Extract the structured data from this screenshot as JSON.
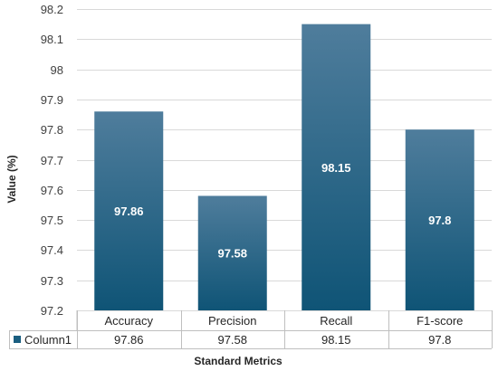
{
  "chart_data": {
    "type": "bar",
    "categories": [
      "Accuracy",
      "Precision",
      "Recall",
      "F1-score"
    ],
    "series": [
      {
        "name": "Column1",
        "values": [
          97.86,
          97.58,
          98.15,
          97.8
        ]
      }
    ],
    "data_labels": [
      "97.86",
      "97.58",
      "98.15",
      "97.8"
    ],
    "table_values": [
      "97.86",
      "97.58",
      "98.15",
      "97.8"
    ],
    "xlabel": "Standard Metrics",
    "ylabel": "Value (%)",
    "ylim": [
      97.2,
      98.2
    ],
    "yticks": [
      97.2,
      97.3,
      97.4,
      97.5,
      97.6,
      97.7,
      97.8,
      97.9,
      98,
      98.1,
      98.2
    ],
    "ytick_labels": [
      "97.2",
      "97.3",
      "97.4",
      "97.5",
      "97.6",
      "97.7",
      "97.8",
      "97.9",
      "98",
      "98.1",
      "98.2"
    ],
    "grid": true,
    "data_table": true,
    "colors": {
      "bar_top": "#4f7d9c",
      "bar_bottom": "#0f5476",
      "legend_key": "#1a5e80"
    }
  }
}
